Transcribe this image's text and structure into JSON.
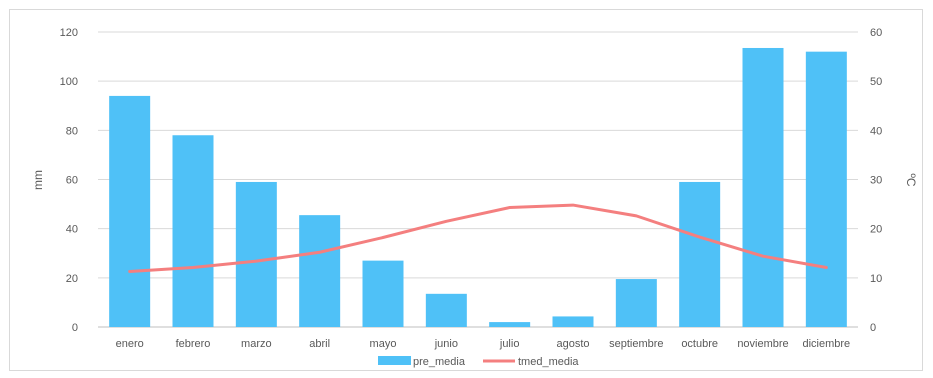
{
  "chart_data": {
    "type": "bar",
    "categories": [
      "enero",
      "febrero",
      "marzo",
      "abril",
      "mayo",
      "junio",
      "julio",
      "agosto",
      "septiembre",
      "octubre",
      "noviembre",
      "diciembre"
    ],
    "series": [
      {
        "name": "pre_media",
        "type": "bar",
        "axis": "left",
        "color": "#4fc1f7",
        "values": [
          94,
          78,
          59,
          45.5,
          27,
          13.5,
          2,
          4.3,
          19.5,
          59,
          113.5,
          112
        ]
      },
      {
        "name": "tmed_media",
        "type": "line",
        "axis": "right",
        "color": "#f47f7f",
        "values": [
          11.3,
          12.1,
          13.4,
          15.2,
          18.2,
          21.5,
          24.3,
          24.8,
          22.6,
          18.3,
          14.4,
          12.1
        ]
      }
    ],
    "ylabel": "mm",
    "y2label": "ºC",
    "ylim": [
      0,
      120
    ],
    "y2lim": [
      0,
      60
    ],
    "yticks": [
      "0",
      "20",
      "40",
      "60",
      "80",
      "100",
      "120"
    ],
    "y2ticks": [
      "0",
      "10",
      "20",
      "30",
      "40",
      "50",
      "60"
    ],
    "grid": true,
    "legend_position": "bottom"
  }
}
